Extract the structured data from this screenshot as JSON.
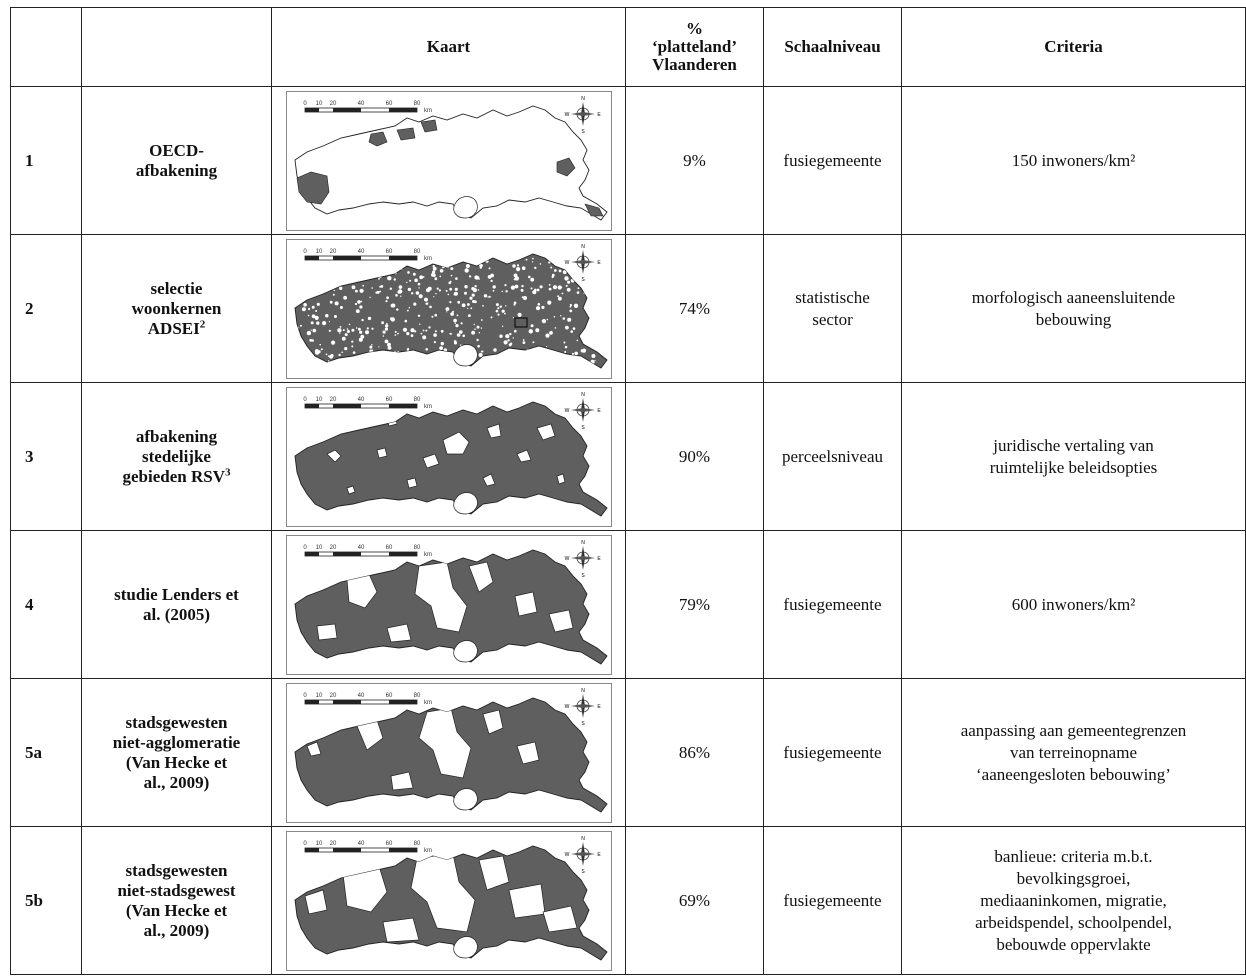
{
  "header": {
    "col_num": "",
    "col_name": "",
    "col_map": "Kaart",
    "col_pct": [
      "%",
      "‘platteland’",
      "Vlaanderen"
    ],
    "col_scale": "Schaalniveau",
    "col_criteria": "Criteria"
  },
  "scalebar": {
    "ticks": [
      "0",
      "10",
      "20",
      "40",
      "60",
      "80"
    ],
    "unit": "km"
  },
  "compass": {
    "n": "N",
    "s": "S",
    "e": "E",
    "w": "W"
  },
  "rows": [
    {
      "num": "1",
      "name": [
        "OECD-",
        "afbakening"
      ],
      "sup": "",
      "map_style": "oecd",
      "pct": "9%",
      "scale": [
        "fusiegemeente"
      ],
      "criteria": [
        "150 inwoners/km²"
      ]
    },
    {
      "num": "2",
      "name": [
        "selectie",
        "woonkernen",
        "ADSEI"
      ],
      "sup": "2",
      "map_style": "speckle",
      "pct": "74%",
      "scale": [
        "statistische",
        "sector"
      ],
      "criteria": [
        "morfologisch aaneensluitende",
        "bebouwing"
      ]
    },
    {
      "num": "3",
      "name": [
        "afbakening",
        "stedelijke",
        "gebieden RSV"
      ],
      "sup": "3",
      "map_style": "rsv",
      "pct": "90%",
      "scale": [
        "perceelsniveau"
      ],
      "criteria": [
        "juridische vertaling van",
        "ruimtelijke beleidsopties"
      ]
    },
    {
      "num": "4",
      "name": [
        "studie Lenders et",
        "al. (2005)"
      ],
      "sup": "",
      "map_style": "lenders",
      "pct": "79%",
      "scale": [
        "fusiegemeente"
      ],
      "criteria": [
        "600 inwoners/km²"
      ]
    },
    {
      "num": "5a",
      "name": [
        "stadsgewesten",
        "niet-agglomeratie",
        "(Van Hecke et",
        "al., 2009)"
      ],
      "sup": "",
      "map_style": "agglo",
      "pct": "86%",
      "scale": [
        "fusiegemeente"
      ],
      "criteria": [
        "aanpassing aan gemeentegrenzen",
        "van terreinopname",
        "‘aaneengesloten bebouwing’"
      ]
    },
    {
      "num": "5b",
      "name": [
        "stadsgewesten",
        "niet-stadsgewest",
        "(Van Hecke et",
        "al., 2009)"
      ],
      "sup": "",
      "map_style": "gewest",
      "pct": "69%",
      "scale": [
        "fusiegemeente"
      ],
      "criteria": [
        "banlieue: criteria m.b.t.",
        "bevolkingsgroei,",
        "mediaaninkomen, migratie,",
        "arbeidspendel, schoolpendel,",
        "bebouwde oppervlakte"
      ]
    }
  ],
  "colors": {
    "fill": "#5f5f5f",
    "outline": "#222222",
    "frame": "#888888"
  }
}
